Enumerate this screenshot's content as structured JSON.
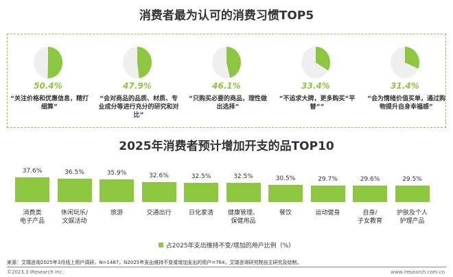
{
  "top5": {
    "title": "消费者最为认可的消费习惯TOP5",
    "items": [
      {
        "value": 50.4,
        "label": "50.4%",
        "quote": "“关注价格和优惠信息，精打细算”"
      },
      {
        "value": 47.9,
        "label": "47.9%",
        "quote": "“会对商品的品质、材质、专业成分等进行充分的研究和对比”"
      },
      {
        "value": 46.1,
        "label": "46.1%",
        "quote": "“只购买必要的商品，理性做出选择”"
      },
      {
        "value": 33.4,
        "label": "33.4%",
        "quote": "“不追求大牌，更多购买“平替””"
      },
      {
        "value": 31.4,
        "label": "31.4%",
        "quote": "“会为情绪价值买单，通过购物提升自身幸福感”"
      }
    ]
  },
  "chart_data": {
    "type": "bar",
    "title": "2025年消费者预计增加开支的品TOP10",
    "categories": [
      "消费类\n电子产品",
      "休闲玩乐/\n文娱活动",
      "旅游",
      "交通出行",
      "日化家清",
      "健康管理、\n保健用品",
      "餐饮",
      "运动健身",
      "自身/\n子女教育",
      "护肤及个人\n护理产品"
    ],
    "values": [
      37.6,
      36.5,
      35.9,
      32.6,
      32.5,
      32.5,
      30.5,
      29.7,
      29.6,
      29.5
    ],
    "data_labels": [
      "37.6%",
      "36.5%",
      "35.9%",
      "32.6%",
      "32.5%",
      "32.5%",
      "30.5%",
      "29.7%",
      "29.6%",
      "29.5%"
    ],
    "series": [
      {
        "name": "占2025年支出维持不变/增加的用户比例（%）"
      }
    ],
    "legend": "bottom",
    "grid": false
  },
  "colors": {
    "accent": "#8dc63f",
    "pie_rest": "#efefef"
  },
  "footer": {
    "source": "来源：艾瑞咨询2025年3月线上用户调研，N=1487，N2025年支出维持不变或增加支出的用户=764，艾瑞咨询研究院自主研究及绘制。",
    "copyright": "©2023.3 iResearch Inc.",
    "url": "www.iresearch.com.cn"
  }
}
